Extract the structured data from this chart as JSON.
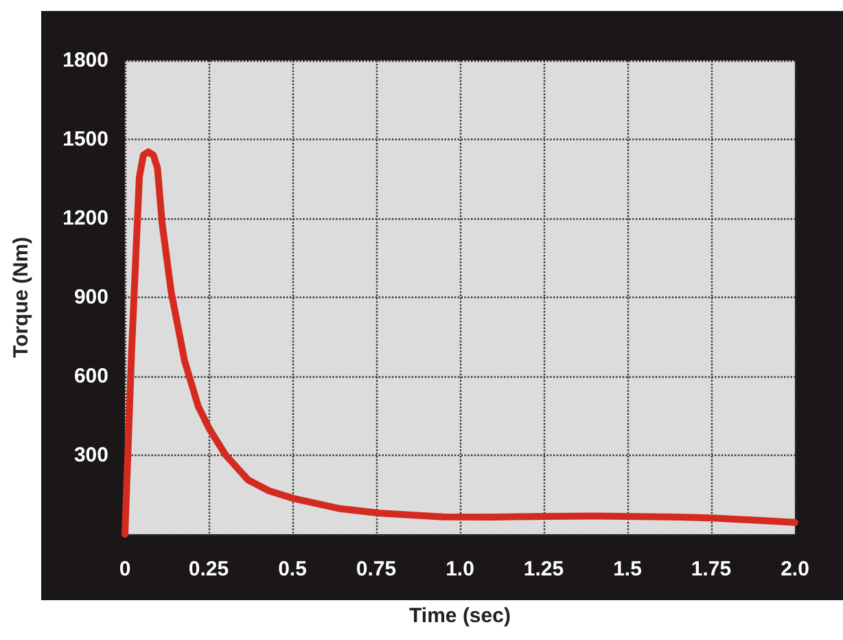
{
  "chart_data": {
    "type": "line",
    "xlabel": "Time (sec)",
    "ylabel": "Torque (Nm)",
    "x": [
      0,
      0.02,
      0.043,
      0.055,
      0.07,
      0.085,
      0.097,
      0.111,
      0.138,
      0.178,
      0.219,
      0.253,
      0.3,
      0.368,
      0.43,
      0.503,
      0.638,
      0.76,
      0.95,
      1.1,
      1.25,
      1.4,
      1.5,
      1.65,
      1.75,
      1.9,
      2.0
    ],
    "series": [
      {
        "color": "#d42a20",
        "values": [
          0,
          700,
          1357,
          1440,
          1453,
          1440,
          1392,
          1182,
          921,
          659,
          485,
          398,
          302,
          206,
          165,
          136,
          98,
          80,
          66,
          65,
          68,
          69,
          68,
          65,
          62,
          52,
          45
        ]
      }
    ],
    "xlim": [
      0,
      2.0
    ],
    "xticks": [
      0,
      0.25,
      0.5,
      0.75,
      {
        "value": 1,
        "label": "1.0"
      },
      1.25,
      1.5,
      1.75,
      {
        "value": 2,
        "label": "2.0"
      }
    ],
    "ylim": [
      0,
      1800
    ],
    "yticks": [
      {
        "value": 0,
        "label": null
      },
      300,
      600,
      900,
      1200,
      1500,
      1800
    ],
    "grid": true,
    "marker": "none",
    "line_style": "solid"
  }
}
